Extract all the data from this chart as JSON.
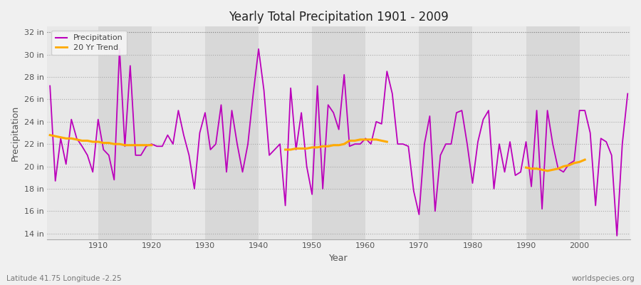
{
  "title": "Yearly Total Precipitation 1901 - 2009",
  "xlabel": "Year",
  "ylabel": "Precipitation",
  "lat_lon_label": "Latitude 41.75 Longitude -2.25",
  "watermark": "worldspecies.org",
  "precip_color": "#bb00bb",
  "trend_color": "#ffaa00",
  "fig_bg_color": "#f0f0f0",
  "plot_bg_color": "#e8e8e8",
  "alt_band_color": "#d8d8d8",
  "ylim": [
    13.5,
    32.5
  ],
  "yticks": [
    14,
    16,
    18,
    20,
    22,
    24,
    26,
    28,
    30,
    32
  ],
  "ytick_labels": [
    "14 in",
    "16 in",
    "18 in",
    "20 in",
    "22 in",
    "24 in",
    "26 in",
    "28 in",
    "30 in",
    "32 in"
  ],
  "xlim": [
    1900.5,
    2009.5
  ],
  "xticks": [
    1910,
    1920,
    1930,
    1940,
    1950,
    1960,
    1970,
    1980,
    1990,
    2000
  ],
  "years": [
    1901,
    1902,
    1903,
    1904,
    1905,
    1906,
    1907,
    1908,
    1909,
    1910,
    1911,
    1912,
    1913,
    1914,
    1915,
    1916,
    1917,
    1918,
    1919,
    1920,
    1921,
    1922,
    1923,
    1924,
    1925,
    1926,
    1927,
    1928,
    1929,
    1930,
    1931,
    1932,
    1933,
    1934,
    1935,
    1936,
    1937,
    1938,
    1939,
    1940,
    1941,
    1942,
    1943,
    1944,
    1945,
    1946,
    1947,
    1948,
    1949,
    1950,
    1951,
    1952,
    1953,
    1954,
    1955,
    1956,
    1957,
    1958,
    1959,
    1960,
    1961,
    1962,
    1963,
    1964,
    1965,
    1966,
    1967,
    1968,
    1969,
    1970,
    1971,
    1972,
    1973,
    1974,
    1975,
    1976,
    1977,
    1978,
    1979,
    1980,
    1981,
    1982,
    1983,
    1984,
    1985,
    1986,
    1987,
    1988,
    1989,
    1990,
    1991,
    1992,
    1993,
    1994,
    1995,
    1996,
    1997,
    1998,
    1999,
    2000,
    2001,
    2002,
    2003,
    2004,
    2005,
    2006,
    2007,
    2008,
    2009
  ],
  "precip": [
    27.2,
    18.7,
    22.5,
    20.2,
    24.2,
    22.5,
    21.8,
    21.0,
    19.5,
    24.2,
    21.5,
    21.0,
    18.8,
    30.5,
    21.8,
    29.0,
    21.0,
    21.0,
    21.8,
    22.0,
    21.8,
    21.8,
    22.8,
    22.0,
    25.0,
    22.8,
    21.0,
    18.0,
    23.0,
    24.8,
    21.5,
    22.0,
    25.5,
    19.5,
    25.0,
    22.0,
    19.5,
    22.0,
    26.5,
    30.5,
    26.8,
    21.0,
    21.5,
    22.0,
    16.5,
    27.0,
    21.5,
    24.8,
    20.0,
    17.5,
    27.2,
    18.0,
    25.5,
    24.8,
    23.3,
    28.2,
    21.8,
    22.0,
    22.0,
    22.5,
    22.0,
    24.0,
    23.8,
    28.5,
    26.5,
    22.0,
    22.0,
    21.8,
    17.8,
    15.7,
    22.0,
    24.5,
    16.0,
    21.0,
    22.0,
    22.0,
    24.8,
    25.0,
    22.0,
    18.5,
    22.2,
    24.2,
    25.0,
    18.0,
    22.0,
    19.5,
    22.2,
    19.2,
    19.5,
    22.2,
    18.2,
    25.0,
    16.2,
    25.0,
    22.0,
    19.8,
    19.5,
    20.2,
    20.5,
    25.0,
    25.0,
    23.0,
    16.5,
    22.5,
    22.2,
    21.0,
    13.8,
    22.0,
    26.5
  ],
  "trend_segments": [
    {
      "years": [
        1901,
        1902,
        1903,
        1904,
        1905,
        1906,
        1907,
        1908,
        1909,
        1910,
        1911,
        1912,
        1913,
        1914,
        1915,
        1916,
        1917,
        1918,
        1919,
        1920
      ],
      "values": [
        22.8,
        22.7,
        22.6,
        22.5,
        22.5,
        22.4,
        22.3,
        22.3,
        22.2,
        22.2,
        22.1,
        22.1,
        22.0,
        22.0,
        21.9,
        21.9,
        21.9,
        21.9,
        21.9,
        21.9
      ]
    },
    {
      "years": [
        1945,
        1946,
        1947,
        1948,
        1949,
        1950,
        1951,
        1952,
        1953,
        1954,
        1955,
        1956,
        1957,
        1958,
        1959,
        1960,
        1961,
        1962,
        1963,
        1964
      ],
      "values": [
        21.5,
        21.5,
        21.6,
        21.6,
        21.6,
        21.7,
        21.7,
        21.8,
        21.8,
        21.9,
        21.9,
        22.0,
        22.3,
        22.3,
        22.4,
        22.4,
        22.4,
        22.4,
        22.3,
        22.2
      ]
    },
    {
      "years": [
        1990,
        1991,
        1992,
        1993,
        1994,
        1995,
        1996,
        1997,
        1998,
        1999,
        2000,
        2001
      ],
      "values": [
        19.9,
        19.8,
        19.8,
        19.7,
        19.6,
        19.7,
        19.8,
        20.0,
        20.1,
        20.3,
        20.4,
        20.6
      ]
    }
  ],
  "decade_bands": [
    1900,
    1910,
    1920,
    1930,
    1940,
    1950,
    1960,
    1970,
    1980,
    1990,
    2000,
    2010
  ]
}
